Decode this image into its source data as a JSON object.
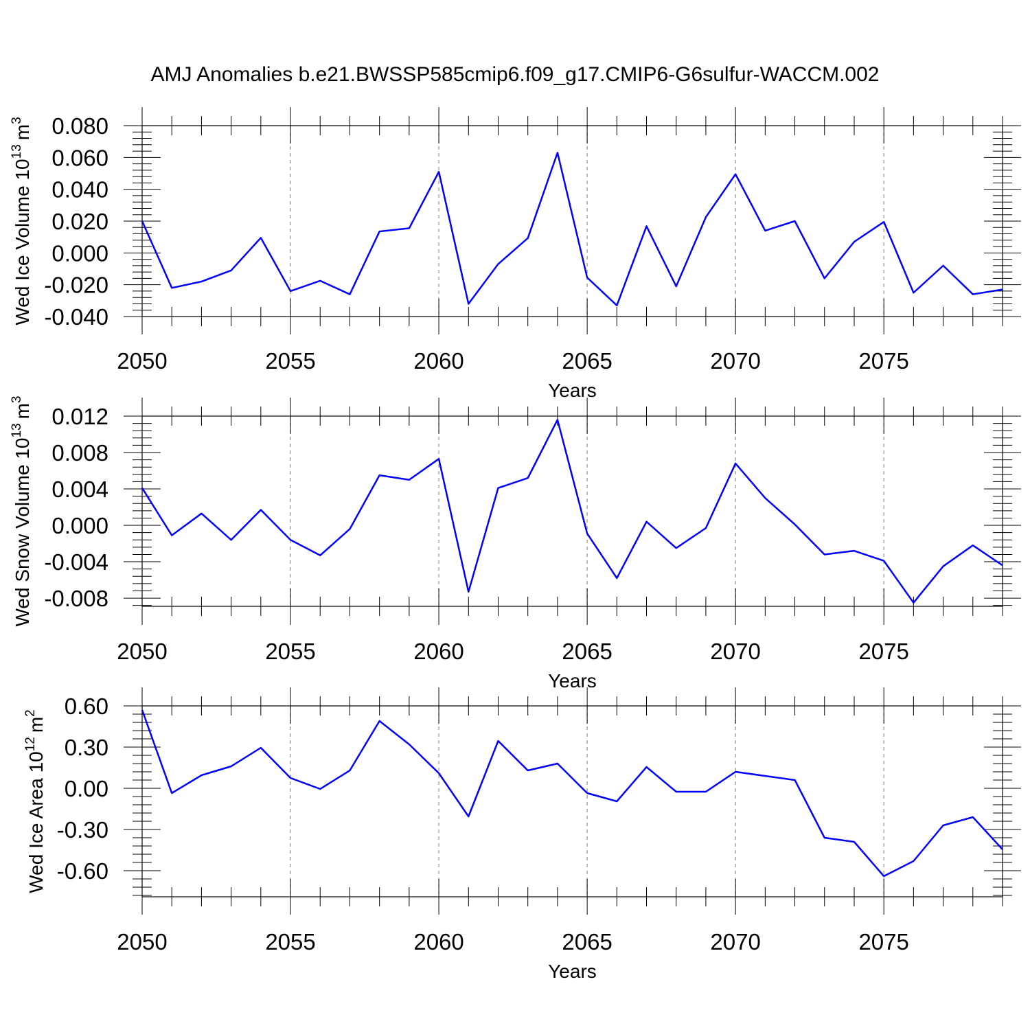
{
  "title": "AMJ Anomalies b.e21.BWSSP585cmip6.f09_g17.CMIP6-G6sulfur-WACCM.002",
  "chart_data": [
    {
      "type": "line",
      "title": "",
      "xlabel": "Years",
      "ylabel": "Wed Ice Volume 10",
      "ylabel_exp": "13",
      "ylabel_unit": "m",
      "ylabel_unit_exp": "3",
      "xlim": [
        2050,
        2079
      ],
      "ylim": [
        -0.04,
        0.08
      ],
      "xticks": [
        2050,
        2055,
        2060,
        2065,
        2070,
        2075
      ],
      "xtick_labels": [
        "2050",
        "2055",
        "2060",
        "2065",
        "2070",
        "2075"
      ],
      "yticks": [
        -0.04,
        -0.02,
        0.0,
        0.02,
        0.04,
        0.06,
        0.08
      ],
      "ytick_labels": [
        "-0.040",
        "-0.020",
        "0.000",
        "0.020",
        "0.040",
        "0.060",
        "0.080"
      ],
      "grid": "dashed vertical lines at major x ticks",
      "x": [
        2050,
        2051,
        2052,
        2053,
        2054,
        2055,
        2056,
        2057,
        2058,
        2059,
        2060,
        2061,
        2062,
        2063,
        2064,
        2065,
        2066,
        2067,
        2068,
        2069,
        2070,
        2071,
        2072,
        2073,
        2074,
        2075,
        2076,
        2077,
        2078,
        2079
      ],
      "series": [
        {
          "values": [
            0.02,
            -0.022,
            -0.018,
            -0.011,
            0.0095,
            -0.024,
            -0.0175,
            -0.026,
            0.0135,
            0.0155,
            0.051,
            -0.032,
            -0.007,
            0.0093,
            0.063,
            -0.0155,
            -0.033,
            0.0168,
            -0.021,
            0.0225,
            0.0495,
            0.014,
            0.02,
            -0.016,
            0.007,
            0.0195,
            -0.025,
            -0.008,
            -0.026,
            -0.023
          ],
          "color": "#0000ff"
        }
      ]
    },
    {
      "type": "line",
      "title": "",
      "xlabel": "Years",
      "ylabel": "Wed Snow Volume 10",
      "ylabel_exp": "13",
      "ylabel_unit": "m",
      "ylabel_unit_exp": "3",
      "xlim": [
        2050,
        2079
      ],
      "ylim": [
        -0.0089,
        0.012
      ],
      "xticks": [
        2050,
        2055,
        2060,
        2065,
        2070,
        2075
      ],
      "xtick_labels": [
        "2050",
        "2055",
        "2060",
        "2065",
        "2070",
        "2075"
      ],
      "yticks": [
        -0.008,
        -0.004,
        0.0,
        0.004,
        0.008,
        0.012
      ],
      "ytick_labels": [
        "-0.008",
        "-0.004",
        "0.000",
        "0.004",
        "0.008",
        "0.012"
      ],
      "grid": "dashed vertical lines at major x ticks",
      "x": [
        2050,
        2051,
        2052,
        2053,
        2054,
        2055,
        2056,
        2057,
        2058,
        2059,
        2060,
        2061,
        2062,
        2063,
        2064,
        2065,
        2066,
        2067,
        2068,
        2069,
        2070,
        2071,
        2072,
        2073,
        2074,
        2075,
        2076,
        2077,
        2078,
        2079
      ],
      "series": [
        {
          "values": [
            0.0041,
            -0.0011,
            0.0013,
            -0.0016,
            0.0017,
            -0.0016,
            -0.0033,
            -0.0004,
            0.0055,
            0.005,
            0.0073,
            -0.0073,
            0.0041,
            0.0052,
            0.0116,
            -0.0009,
            -0.0058,
            0.0004,
            -0.0025,
            -0.0003,
            0.0068,
            0.003,
            0.0001,
            -0.0032,
            -0.0028,
            -0.0039,
            -0.0085,
            -0.0045,
            -0.0022,
            -0.0044
          ],
          "color": "#0000ff"
        }
      ]
    },
    {
      "type": "line",
      "title": "",
      "xlabel": "Years",
      "ylabel": "Wed Ice Area 10",
      "ylabel_exp": "12",
      "ylabel_unit": "m",
      "ylabel_unit_exp": "2",
      "xlim": [
        2050,
        2079
      ],
      "ylim": [
        -0.79,
        0.6
      ],
      "xticks": [
        2050,
        2055,
        2060,
        2065,
        2070,
        2075
      ],
      "xtick_labels": [
        "2050",
        "2055",
        "2060",
        "2065",
        "2070",
        "2075"
      ],
      "yticks": [
        -0.6,
        -0.3,
        0.0,
        0.3,
        0.6
      ],
      "ytick_labels": [
        "-0.60",
        "-0.30",
        "0.00",
        "0.30",
        "0.60"
      ],
      "grid": "dashed vertical lines at major x ticks",
      "x": [
        2050,
        2051,
        2052,
        2053,
        2054,
        2055,
        2056,
        2057,
        2058,
        2059,
        2060,
        2061,
        2062,
        2063,
        2064,
        2065,
        2066,
        2067,
        2068,
        2069,
        2070,
        2071,
        2072,
        2073,
        2074,
        2075,
        2076,
        2077,
        2078,
        2079
      ],
      "series": [
        {
          "values": [
            0.57,
            -0.035,
            0.095,
            0.16,
            0.295,
            0.075,
            -0.005,
            0.13,
            0.49,
            0.32,
            0.11,
            -0.205,
            0.345,
            0.13,
            0.18,
            -0.035,
            -0.095,
            0.155,
            -0.025,
            -0.025,
            0.12,
            0.09,
            0.06,
            -0.36,
            -0.39,
            -0.64,
            -0.53,
            -0.27,
            -0.21,
            -0.445
          ],
          "color": "#0000ff"
        }
      ]
    }
  ]
}
